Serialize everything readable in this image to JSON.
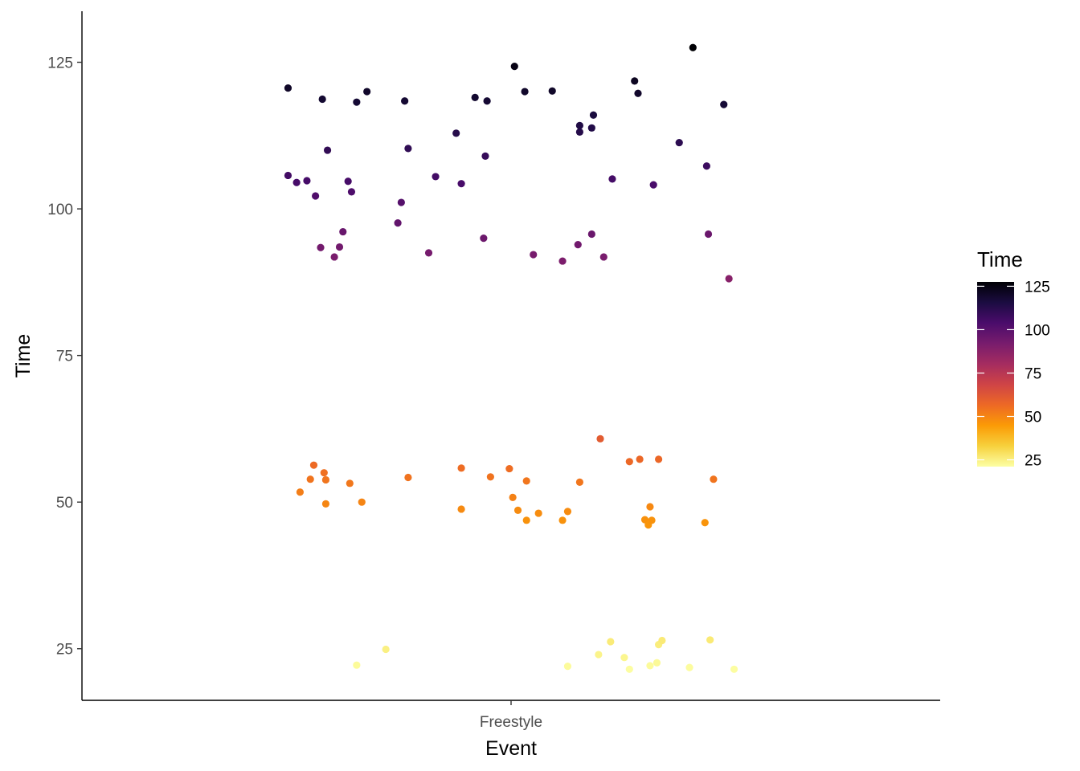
{
  "chart_data": {
    "type": "scatter",
    "title": "",
    "xlabel": "Event",
    "ylabel": "Time",
    "categories": [
      "Freestyle"
    ],
    "ylim": [
      16.2,
      133.7
    ],
    "y_ticks": [
      25,
      50,
      75,
      100,
      125
    ],
    "grid": false,
    "jitter": true,
    "legend": {
      "title": "Time",
      "type": "colorbar",
      "placement": "right",
      "ticks": [
        25,
        50,
        75,
        100,
        125
      ],
      "range": [
        21.1,
        127.5
      ],
      "palette": "inferno",
      "colors": [
        "#FCFFA4",
        "#F7D13D",
        "#FB9B06",
        "#ED6925",
        "#CF4446",
        "#A52C60",
        "#781C6D",
        "#4A0C6B",
        "#1B0C41",
        "#000004"
      ]
    },
    "points": [
      {
        "x": -0.65,
        "y": 120.6
      },
      {
        "x": -0.55,
        "y": 118.7
      },
      {
        "x": -0.45,
        "y": 118.2
      },
      {
        "x": -0.42,
        "y": 120.0
      },
      {
        "x": -0.31,
        "y": 118.4
      },
      {
        "x": -0.105,
        "y": 119.0
      },
      {
        "x": -0.07,
        "y": 118.4
      },
      {
        "x": 0.01,
        "y": 124.3
      },
      {
        "x": 0.04,
        "y": 120.0
      },
      {
        "x": 0.12,
        "y": 120.1
      },
      {
        "x": 0.24,
        "y": 116.0
      },
      {
        "x": 0.36,
        "y": 121.8
      },
      {
        "x": 0.37,
        "y": 119.7
      },
      {
        "x": 0.53,
        "y": 127.5
      },
      {
        "x": 0.62,
        "y": 117.8
      },
      {
        "x": -0.16,
        "y": 112.9
      },
      {
        "x": 0.2,
        "y": 113.1
      },
      {
        "x": 0.2,
        "y": 114.2
      },
      {
        "x": 0.235,
        "y": 113.8
      },
      {
        "x": 0.49,
        "y": 111.3
      },
      {
        "x": -0.535,
        "y": 110.0
      },
      {
        "x": -0.3,
        "y": 110.3
      },
      {
        "x": -0.075,
        "y": 109.0
      },
      {
        "x": -0.65,
        "y": 105.7
      },
      {
        "x": -0.625,
        "y": 104.5
      },
      {
        "x": -0.595,
        "y": 104.8
      },
      {
        "x": -0.57,
        "y": 102.2
      },
      {
        "x": -0.475,
        "y": 104.7
      },
      {
        "x": -0.465,
        "y": 102.9
      },
      {
        "x": -0.22,
        "y": 105.5
      },
      {
        "x": -0.145,
        "y": 104.3
      },
      {
        "x": 0.295,
        "y": 105.1
      },
      {
        "x": 0.415,
        "y": 104.1
      },
      {
        "x": 0.57,
        "y": 107.3
      },
      {
        "x": -0.32,
        "y": 101.1
      },
      {
        "x": -0.33,
        "y": 97.6
      },
      {
        "x": -0.49,
        "y": 96.1
      },
      {
        "x": -0.555,
        "y": 93.4
      },
      {
        "x": -0.5,
        "y": 93.5
      },
      {
        "x": -0.515,
        "y": 91.8
      },
      {
        "x": -0.24,
        "y": 92.5
      },
      {
        "x": -0.08,
        "y": 95.0
      },
      {
        "x": 0.065,
        "y": 92.2
      },
      {
        "x": 0.15,
        "y": 91.1
      },
      {
        "x": 0.195,
        "y": 93.9
      },
      {
        "x": 0.235,
        "y": 95.7
      },
      {
        "x": 0.27,
        "y": 91.8
      },
      {
        "x": 0.575,
        "y": 95.7
      },
      {
        "x": 0.635,
        "y": 88.1
      },
      {
        "x": 0.26,
        "y": 60.8
      },
      {
        "x": -0.615,
        "y": 51.7
      },
      {
        "x": -0.585,
        "y": 53.9
      },
      {
        "x": -0.575,
        "y": 56.3
      },
      {
        "x": -0.545,
        "y": 55.0
      },
      {
        "x": -0.54,
        "y": 53.8
      },
      {
        "x": -0.54,
        "y": 49.7
      },
      {
        "x": -0.47,
        "y": 53.2
      },
      {
        "x": -0.435,
        "y": 50.0
      },
      {
        "x": -0.3,
        "y": 54.2
      },
      {
        "x": -0.145,
        "y": 55.8
      },
      {
        "x": -0.145,
        "y": 48.8
      },
      {
        "x": -0.06,
        "y": 54.3
      },
      {
        "x": -0.005,
        "y": 55.7
      },
      {
        "x": 0.005,
        "y": 50.8
      },
      {
        "x": 0.02,
        "y": 48.6
      },
      {
        "x": 0.045,
        "y": 53.6
      },
      {
        "x": 0.045,
        "y": 46.9
      },
      {
        "x": 0.08,
        "y": 48.1
      },
      {
        "x": 0.15,
        "y": 46.9
      },
      {
        "x": 0.165,
        "y": 48.4
      },
      {
        "x": 0.2,
        "y": 53.4
      },
      {
        "x": 0.345,
        "y": 56.9
      },
      {
        "x": 0.375,
        "y": 57.3
      },
      {
        "x": 0.39,
        "y": 47.0
      },
      {
        "x": 0.4,
        "y": 46.1
      },
      {
        "x": 0.405,
        "y": 49.2
      },
      {
        "x": 0.41,
        "y": 46.9
      },
      {
        "x": 0.43,
        "y": 57.3
      },
      {
        "x": 0.565,
        "y": 46.5
      },
      {
        "x": 0.59,
        "y": 53.9
      },
      {
        "x": -0.45,
        "y": 22.2
      },
      {
        "x": -0.365,
        "y": 24.9
      },
      {
        "x": 0.165,
        "y": 22.0
      },
      {
        "x": 0.255,
        "y": 24.0
      },
      {
        "x": 0.29,
        "y": 26.2
      },
      {
        "x": 0.33,
        "y": 23.5
      },
      {
        "x": 0.345,
        "y": 21.5
      },
      {
        "x": 0.405,
        "y": 22.1
      },
      {
        "x": 0.425,
        "y": 22.6
      },
      {
        "x": 0.43,
        "y": 25.7
      },
      {
        "x": 0.44,
        "y": 26.4
      },
      {
        "x": 0.52,
        "y": 21.8
      },
      {
        "x": 0.58,
        "y": 26.5
      },
      {
        "x": 0.65,
        "y": 21.5
      }
    ]
  }
}
